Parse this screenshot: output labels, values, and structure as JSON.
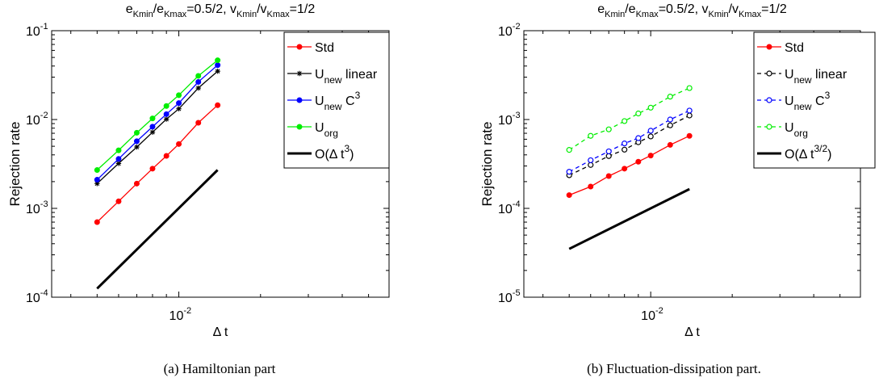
{
  "figure": {
    "captions": [
      "(a) Hamiltonian part",
      "(b) Fluctuation-dissipation part."
    ]
  },
  "chart_data": [
    {
      "type": "line",
      "panel": "a",
      "title_rich": [
        {
          "t": "e"
        },
        {
          "t": "Kmin",
          "sub": true
        },
        {
          "t": "/e"
        },
        {
          "t": "Kmax",
          "sub": true
        },
        {
          "t": "=0.5/2, v"
        },
        {
          "t": "Kmin",
          "sub": true
        },
        {
          "t": "/v"
        },
        {
          "t": "Kmax",
          "sub": true
        },
        {
          "t": "=1/2"
        }
      ],
      "xlabel": "Δ t",
      "ylabel": "Rejection rate",
      "xscale": "log",
      "yscale": "log",
      "xlim": [
        0.0034,
        0.0595
      ],
      "ylim": [
        0.0001,
        0.1
      ],
      "yticks": [
        {
          "b": "10",
          "e": "-4"
        },
        {
          "b": "10",
          "e": "-3"
        },
        {
          "b": "10",
          "e": "-2"
        },
        {
          "b": "10",
          "e": "-1"
        }
      ],
      "xticks": [
        {
          "b": "10",
          "e": "-2"
        }
      ],
      "x": [
        0.005,
        0.006,
        0.007,
        0.008,
        0.009,
        0.01,
        0.0118,
        0.0139
      ],
      "series": [
        {
          "name": "Std",
          "name_sub": "",
          "name_suffix": "",
          "name_sup": "",
          "color": "#ff0000",
          "marker": "dot",
          "dash": "",
          "values": [
            0.0007,
            0.0012,
            0.0019,
            0.0028,
            0.0039,
            0.0053,
            0.0092,
            0.0145
          ]
        },
        {
          "name": "U",
          "name_sub": "new",
          "name_suffix": " linear",
          "name_sup": "",
          "color": "#000000",
          "marker": "star",
          "dash": "",
          "values": [
            0.0019,
            0.0032,
            0.0049,
            0.0072,
            0.0101,
            0.0132,
            0.0226,
            0.035
          ]
        },
        {
          "name": "U",
          "name_sub": "new",
          "name_suffix": " C",
          "name_sup": "3",
          "color": "#0000ff",
          "marker": "dot",
          "dash": "",
          "values": [
            0.0021,
            0.0036,
            0.0057,
            0.0083,
            0.0115,
            0.0153,
            0.0265,
            0.041
          ]
        },
        {
          "name": "U",
          "name_sub": "org",
          "name_suffix": "",
          "name_sup": "",
          "color": "#00ee00",
          "marker": "dot",
          "dash": "",
          "values": [
            0.0027,
            0.0045,
            0.0071,
            0.0103,
            0.0142,
            0.0188,
            0.031,
            0.0465
          ]
        },
        {
          "name": "O(Δ t",
          "name_sub": "",
          "name_suffix": ")",
          "name_sup": "3",
          "color": "#000000",
          "marker": "none",
          "dash": "",
          "thick": true,
          "x": [
            0.005,
            0.0139
          ],
          "values": [
            0.000125,
            0.0027
          ]
        }
      ],
      "legend": "top-right"
    },
    {
      "type": "line",
      "panel": "b",
      "title_rich": [
        {
          "t": "e"
        },
        {
          "t": "Kmin",
          "sub": true
        },
        {
          "t": "/e"
        },
        {
          "t": "Kmax",
          "sub": true
        },
        {
          "t": "=0.5/2, v"
        },
        {
          "t": "Kmin",
          "sub": true
        },
        {
          "t": "/v"
        },
        {
          "t": "Kmax",
          "sub": true
        },
        {
          "t": "=1/2"
        }
      ],
      "xlabel": "Δ t",
      "ylabel": "Rejection rate",
      "xscale": "log",
      "yscale": "log",
      "xlim": [
        0.0034,
        0.0595
      ],
      "ylim": [
        1e-05,
        0.01
      ],
      "yticks": [
        {
          "b": "10",
          "e": "-5"
        },
        {
          "b": "10",
          "e": "-4"
        },
        {
          "b": "10",
          "e": "-3"
        },
        {
          "b": "10",
          "e": "-2"
        }
      ],
      "xticks": [
        {
          "b": "10",
          "e": "-2"
        }
      ],
      "x": [
        0.005,
        0.006,
        0.007,
        0.008,
        0.009,
        0.01,
        0.0118,
        0.0139
      ],
      "series": [
        {
          "name": "Std",
          "name_sub": "",
          "name_suffix": "",
          "name_sup": "",
          "color": "#ff0000",
          "marker": "dot",
          "dash": "",
          "values": [
            0.000141,
            0.000176,
            0.000231,
            0.00028,
            0.000335,
            0.000393,
            0.000518,
            0.000655
          ]
        },
        {
          "name": "U",
          "name_sub": "new",
          "name_suffix": " linear",
          "name_sup": "",
          "color": "#000000",
          "marker": "circle",
          "dash": "5,4",
          "values": [
            0.000236,
            0.000308,
            0.000388,
            0.000458,
            0.000555,
            0.000645,
            0.00086,
            0.00111
          ]
        },
        {
          "name": "U",
          "name_sub": "new",
          "name_suffix": " C",
          "name_sup": "3",
          "color": "#0000ff",
          "marker": "circle",
          "dash": "5,4",
          "values": [
            0.000258,
            0.000348,
            0.000438,
            0.000538,
            0.000618,
            0.000748,
            0.001,
            0.00126
          ]
        },
        {
          "name": "U",
          "name_sub": "org",
          "name_suffix": "",
          "name_sup": "",
          "color": "#00ee00",
          "marker": "circle",
          "dash": "5,4",
          "values": [
            0.000455,
            0.000655,
            0.000775,
            0.00096,
            0.00117,
            0.00136,
            0.00181,
            0.00226
          ]
        },
        {
          "name": "O(Δ t",
          "name_sub": "",
          "name_suffix": ")",
          "name_sup": "3/2",
          "color": "#000000",
          "marker": "none",
          "dash": "",
          "thick": true,
          "x": [
            0.005,
            0.0139
          ],
          "values": [
            3.5e-05,
            0.000165
          ]
        }
      ],
      "legend": "top-right"
    }
  ]
}
